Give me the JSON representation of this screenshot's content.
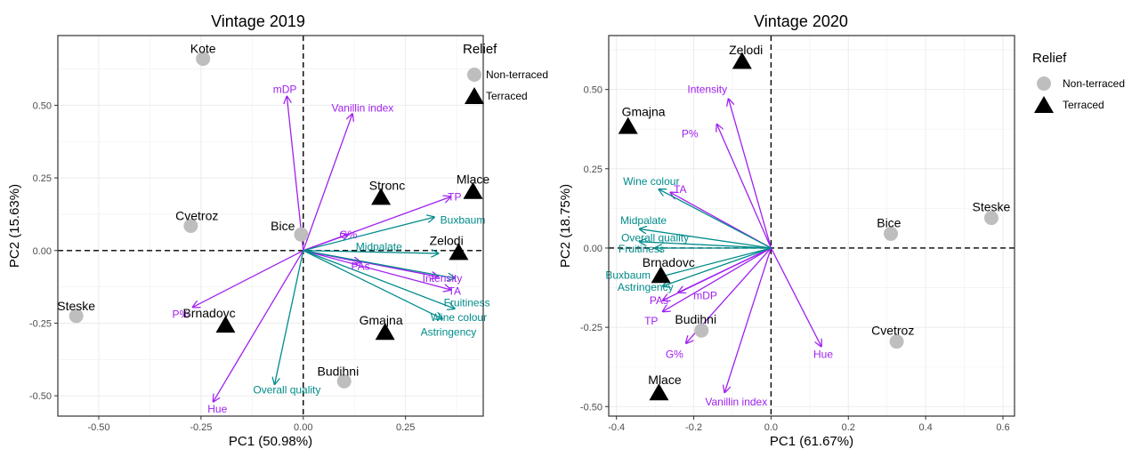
{
  "colors": {
    "purple": "#a020f0",
    "teal": "#008b8b",
    "point_gray": "#bebebe",
    "triangle": "#000000",
    "panel_border": "#333333",
    "grid": "#ebebeb"
  },
  "chart_data": [
    {
      "type": "scatter",
      "title": "Vintage 2019",
      "xlabel": "PC1 (50.98%)",
      "ylabel": "PC2 (15.63%)",
      "xlim": [
        -0.6,
        0.44
      ],
      "ylim": [
        -0.57,
        0.74
      ],
      "x_ticks": [
        {
          "value": -0.5,
          "label": "-0.50"
        },
        {
          "value": -0.25,
          "label": "-0.25"
        },
        {
          "value": 0,
          "label": "0.00"
        },
        {
          "value": 0.25,
          "label": "0.25"
        }
      ],
      "y_ticks": [
        {
          "value": -0.5,
          "label": "-0.50"
        },
        {
          "value": -0.25,
          "label": "-0.25"
        },
        {
          "value": 0,
          "label": "0.00"
        },
        {
          "value": 0.25,
          "label": "0.25"
        },
        {
          "value": 0.5,
          "label": "0.50"
        }
      ],
      "grid": true,
      "observations": [
        {
          "name": "Kote",
          "x": -0.245,
          "y": 0.66,
          "relief": "Non-terraced",
          "lx": -0.245,
          "ly": 0.695
        },
        {
          "name": "Cvetroz",
          "x": -0.275,
          "y": 0.085,
          "relief": "Non-terraced",
          "lx": -0.26,
          "ly": 0.12
        },
        {
          "name": "Bice",
          "x": -0.005,
          "y": 0.055,
          "relief": "Non-terraced",
          "lx": -0.05,
          "ly": 0.085
        },
        {
          "name": "Steske",
          "x": -0.555,
          "y": -0.225,
          "relief": "Non-terraced",
          "lx": -0.555,
          "ly": -0.19
        },
        {
          "name": "Budihni",
          "x": 0.1,
          "y": -0.45,
          "relief": "Non-terraced",
          "lx": 0.085,
          "ly": -0.415
        },
        {
          "name": "Stronc",
          "x": 0.19,
          "y": 0.185,
          "relief": "Terraced",
          "lx": 0.205,
          "ly": 0.225
        },
        {
          "name": "Mlace",
          "x": 0.415,
          "y": 0.205,
          "relief": "Terraced",
          "lx": 0.415,
          "ly": 0.245
        },
        {
          "name": "Zelodi",
          "x": 0.38,
          "y": -0.005,
          "relief": "Terraced",
          "lx": 0.35,
          "ly": 0.035
        },
        {
          "name": "Gmajna",
          "x": 0.2,
          "y": -0.28,
          "relief": "Terraced",
          "lx": 0.19,
          "ly": -0.24
        },
        {
          "name": "Brnadovc",
          "x": -0.19,
          "y": -0.255,
          "relief": "Terraced",
          "lx": -0.23,
          "ly": -0.215
        }
      ],
      "variables": [
        {
          "name": "mDP",
          "x": -0.04,
          "y": 0.53,
          "group": "purple",
          "lx": -0.045,
          "ly": 0.555
        },
        {
          "name": "Vanillin index",
          "x": 0.12,
          "y": 0.47,
          "group": "purple",
          "lx": 0.145,
          "ly": 0.49
        },
        {
          "name": "TP",
          "x": 0.36,
          "y": 0.185,
          "group": "purple",
          "lx": 0.37,
          "ly": 0.185
        },
        {
          "name": "G%",
          "x": 0.11,
          "y": 0.055,
          "group": "purple",
          "lx": 0.11,
          "ly": 0.055
        },
        {
          "name": "PAs",
          "x": 0.14,
          "y": -0.04,
          "group": "purple",
          "lx": 0.14,
          "ly": -0.055
        },
        {
          "name": "Intensity",
          "x": 0.33,
          "y": -0.09,
          "group": "purple",
          "lx": 0.34,
          "ly": -0.095
        },
        {
          "name": "TA",
          "x": 0.36,
          "y": -0.135,
          "group": "purple",
          "lx": 0.37,
          "ly": -0.14
        },
        {
          "name": "P%",
          "x": -0.27,
          "y": -0.195,
          "group": "purple",
          "lx": -0.3,
          "ly": -0.22
        },
        {
          "name": "Hue",
          "x": -0.22,
          "y": -0.52,
          "group": "purple",
          "lx": -0.21,
          "ly": -0.545
        },
        {
          "name": "Buxbaum",
          "x": 0.32,
          "y": 0.115,
          "group": "teal",
          "lx": 0.39,
          "ly": 0.105
        },
        {
          "name": "Midpalate",
          "x": 0.33,
          "y": -0.01,
          "group": "teal",
          "lx": 0.185,
          "ly": 0.013
        },
        {
          "name": "Fruitiness",
          "x": 0.37,
          "y": -0.095,
          "group": "teal",
          "lx": 0.4,
          "ly": -0.18
        },
        {
          "name": "Wine colour",
          "x": 0.37,
          "y": -0.2,
          "group": "teal",
          "lx": 0.38,
          "ly": -0.23
        },
        {
          "name": "Astringency",
          "x": 0.34,
          "y": -0.235,
          "group": "teal",
          "lx": 0.355,
          "ly": -0.28
        },
        {
          "name": "Overall quality",
          "x": -0.07,
          "y": -0.46,
          "group": "teal",
          "lx": -0.04,
          "ly": -0.48
        }
      ],
      "legend": {
        "title": "Relief",
        "items": [
          "Non-terraced",
          "Terraced"
        ],
        "position": "right"
      }
    },
    {
      "type": "scatter",
      "title": "Vintage 2020",
      "xlabel": "PC1 (61.67%)",
      "ylabel": "PC2 (18.75%)",
      "xlim": [
        -0.42,
        0.63
      ],
      "ylim": [
        -0.53,
        0.67
      ],
      "x_ticks": [
        {
          "value": -0.4,
          "label": "-0.4"
        },
        {
          "value": -0.2,
          "label": "-0.2"
        },
        {
          "value": 0,
          "label": "0.0"
        },
        {
          "value": 0.2,
          "label": "0.2"
        },
        {
          "value": 0.4,
          "label": "0.4"
        },
        {
          "value": 0.6,
          "label": "0.6"
        }
      ],
      "y_ticks": [
        {
          "value": -0.5,
          "label": "-0.50"
        },
        {
          "value": -0.25,
          "label": "-0.25"
        },
        {
          "value": 0,
          "label": "0.00"
        },
        {
          "value": 0.25,
          "label": "0.25"
        },
        {
          "value": 0.5,
          "label": "0.50"
        }
      ],
      "grid": true,
      "observations": [
        {
          "name": "Zelodi",
          "x": -0.075,
          "y": 0.59,
          "relief": "Terraced",
          "lx": -0.065,
          "ly": 0.625
        },
        {
          "name": "Gmajna",
          "x": -0.37,
          "y": 0.385,
          "relief": "Terraced",
          "lx": -0.33,
          "ly": 0.43
        },
        {
          "name": "Bice",
          "x": 0.31,
          "y": 0.045,
          "relief": "Non-terraced",
          "lx": 0.305,
          "ly": 0.08
        },
        {
          "name": "Steske",
          "x": 0.57,
          "y": 0.095,
          "relief": "Non-terraced",
          "lx": 0.57,
          "ly": 0.13
        },
        {
          "name": "Cvetroz",
          "x": 0.325,
          "y": -0.295,
          "relief": "Non-terraced",
          "lx": 0.315,
          "ly": -0.26
        },
        {
          "name": "Brnadovc",
          "x": -0.285,
          "y": -0.085,
          "relief": "Terraced",
          "lx": -0.265,
          "ly": -0.045
        },
        {
          "name": "Budihni",
          "x": -0.18,
          "y": -0.26,
          "relief": "Non-terraced",
          "lx": -0.195,
          "ly": -0.225
        },
        {
          "name": "Mlace",
          "x": -0.29,
          "y": -0.455,
          "relief": "Terraced",
          "lx": -0.275,
          "ly": -0.415
        }
      ],
      "variables": [
        {
          "name": "Intensity",
          "x": -0.11,
          "y": 0.47,
          "group": "purple",
          "lx": -0.165,
          "ly": 0.5
        },
        {
          "name": "P%",
          "x": -0.14,
          "y": 0.39,
          "group": "purple",
          "lx": -0.21,
          "ly": 0.36
        },
        {
          "name": "TA",
          "x": -0.26,
          "y": 0.175,
          "group": "purple",
          "lx": -0.235,
          "ly": 0.185
        },
        {
          "name": "mDP",
          "x": -0.24,
          "y": -0.14,
          "group": "purple",
          "lx": -0.17,
          "ly": -0.15
        },
        {
          "name": "PAs",
          "x": -0.28,
          "y": -0.165,
          "group": "purple",
          "lx": -0.29,
          "ly": -0.165
        },
        {
          "name": "TP",
          "x": -0.28,
          "y": -0.2,
          "group": "purple",
          "lx": -0.31,
          "ly": -0.23
        },
        {
          "name": "G%",
          "x": -0.22,
          "y": -0.3,
          "group": "purple",
          "lx": -0.25,
          "ly": -0.335
        },
        {
          "name": "Vanillin index",
          "x": -0.12,
          "y": -0.455,
          "group": "purple",
          "lx": -0.09,
          "ly": -0.485
        },
        {
          "name": "Hue",
          "x": 0.13,
          "y": -0.31,
          "group": "purple",
          "lx": 0.135,
          "ly": -0.335
        },
        {
          "name": "Wine colour",
          "x": -0.29,
          "y": 0.185,
          "group": "teal",
          "lx": -0.31,
          "ly": 0.21
        },
        {
          "name": "Midpalate",
          "x": -0.34,
          "y": 0.06,
          "group": "teal",
          "lx": -0.33,
          "ly": 0.087
        },
        {
          "name": "Overall quality",
          "x": -0.34,
          "y": 0.02,
          "group": "teal",
          "lx": -0.3,
          "ly": 0.032
        },
        {
          "name": "Fruitiness",
          "x": -0.3,
          "y": 0.0,
          "group": "teal",
          "lx": -0.335,
          "ly": -0.003
        },
        {
          "name": "Buxbaum",
          "x": -0.3,
          "y": -0.095,
          "group": "teal",
          "lx": -0.37,
          "ly": -0.085
        },
        {
          "name": "Astringency",
          "x": -0.28,
          "y": -0.12,
          "group": "teal",
          "lx": -0.325,
          "ly": -0.123
        }
      ],
      "legend": {
        "title": "Relief",
        "items": [
          "Non-terraced",
          "Terraced"
        ],
        "position": "right"
      }
    }
  ]
}
